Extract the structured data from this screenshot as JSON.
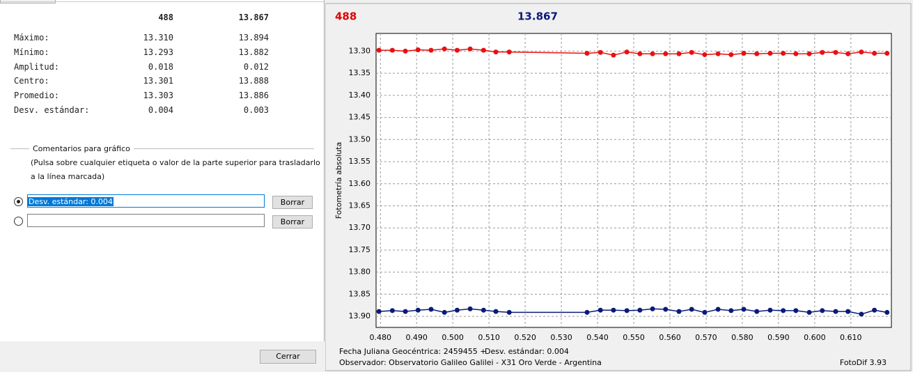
{
  "stats": {
    "columns": [
      "488",
      "13.867"
    ],
    "rows": [
      {
        "label": "Máximo:",
        "values": [
          "13.310",
          "13.894"
        ]
      },
      {
        "label": "Mínimo:",
        "values": [
          "13.293",
          "13.882"
        ]
      },
      {
        "label": "Amplitud:",
        "values": [
          "0.018",
          "0.012"
        ]
      },
      {
        "label": "Centro:",
        "values": [
          "13.301",
          "13.888"
        ]
      },
      {
        "label": "Promedio:",
        "values": [
          "13.303",
          "13.886"
        ]
      },
      {
        "label": "Desv. estándar:",
        "values": [
          "0.004",
          "0.003"
        ]
      }
    ]
  },
  "comments": {
    "title": "Comentarios para gráfico",
    "help": [
      "(Pulsa sobre cualquier etiqueta o valor de la parte superior para trasladarlo",
      "a la línea marcada)"
    ],
    "inputs": [
      "Desv. estándar: 0.004"
    ],
    "delete_button": "Borrar"
  },
  "close_button": "Cerrar",
  "chart_data": {
    "type": "line",
    "y_label": "Fotometría absoluta",
    "y_inverted": true,
    "grid": true,
    "footer": [
      "Fecha Juliana Geocéntrica: 2459455 +",
      "Desv. estándar: 0.004",
      "Observador: Observatorio Galileo Galilei - X31 Oro Verde - Argentina",
      "FotoDif 3.93"
    ],
    "xlim": [
      0.4788,
      0.6212
    ],
    "ylim": [
      13.26,
      13.925
    ],
    "xticks": [
      {
        "value": 0.48,
        "label": "0.480"
      },
      {
        "value": 0.49,
        "label": "0.490"
      },
      {
        "value": 0.5,
        "label": "0.500"
      },
      {
        "value": 0.51,
        "label": "0.510"
      },
      {
        "value": 0.52,
        "label": "0.520"
      },
      {
        "value": 0.53,
        "label": "0.530"
      },
      {
        "value": 0.54,
        "label": "0.540"
      },
      {
        "value": 0.55,
        "label": "0.550"
      },
      {
        "value": 0.56,
        "label": "0.560"
      },
      {
        "value": 0.57,
        "label": "0.570"
      },
      {
        "value": 0.58,
        "label": "0.580"
      },
      {
        "value": 0.59,
        "label": "0.590"
      },
      {
        "value": 0.6,
        "label": "0.600"
      },
      {
        "value": 0.61,
        "label": "0.610"
      }
    ],
    "yticks": [
      {
        "value": 13.3,
        "label": "13.30"
      },
      13.35,
      {
        "value": 13.4,
        "label": "13.40"
      },
      13.45,
      {
        "value": 13.5,
        "label": "13.50"
      },
      13.55,
      {
        "value": 13.6,
        "label": "13.60"
      },
      13.65,
      {
        "value": 13.7,
        "label": "13.70"
      },
      13.75,
      {
        "value": 13.8,
        "label": "13.80"
      },
      13.85,
      {
        "value": 13.9,
        "label": "13.90"
      }
    ],
    "x": [
      0.4796,
      0.4833,
      0.4869,
      0.4904,
      0.494,
      0.4977,
      0.5012,
      0.5048,
      0.5085,
      0.5119,
      0.5156,
      0.5371,
      0.5408,
      0.5444,
      0.5481,
      0.5517,
      0.5552,
      0.5588,
      0.5625,
      0.566,
      0.5696,
      0.5733,
      0.5769,
      0.5804,
      0.584,
      0.5877,
      0.5913,
      0.5948,
      0.5985,
      0.6021,
      0.6058,
      0.6092,
      0.6129,
      0.6165,
      0.62
    ],
    "series": [
      {
        "name": "488",
        "color": "#e81010",
        "values": [
          13.298,
          13.298,
          13.3,
          13.297,
          13.298,
          13.295,
          13.298,
          13.295,
          13.298,
          13.302,
          13.302,
          13.305,
          13.303,
          13.309,
          13.302,
          13.306,
          13.306,
          13.306,
          13.306,
          13.303,
          13.308,
          13.306,
          13.308,
          13.305,
          13.306,
          13.305,
          13.305,
          13.306,
          13.306,
          13.303,
          13.303,
          13.306,
          13.302,
          13.305,
          13.305
        ]
      },
      {
        "name": "13.867",
        "color": "#0a1a7a",
        "values": [
          13.889,
          13.887,
          13.889,
          13.886,
          13.884,
          13.891,
          13.886,
          13.883,
          13.886,
          13.889,
          13.891,
          13.891,
          13.886,
          13.886,
          13.887,
          13.886,
          13.883,
          13.884,
          13.889,
          13.884,
          13.891,
          13.884,
          13.887,
          13.884,
          13.889,
          13.886,
          13.887,
          13.887,
          13.891,
          13.887,
          13.889,
          13.889,
          13.895,
          13.886,
          13.891
        ]
      }
    ]
  }
}
